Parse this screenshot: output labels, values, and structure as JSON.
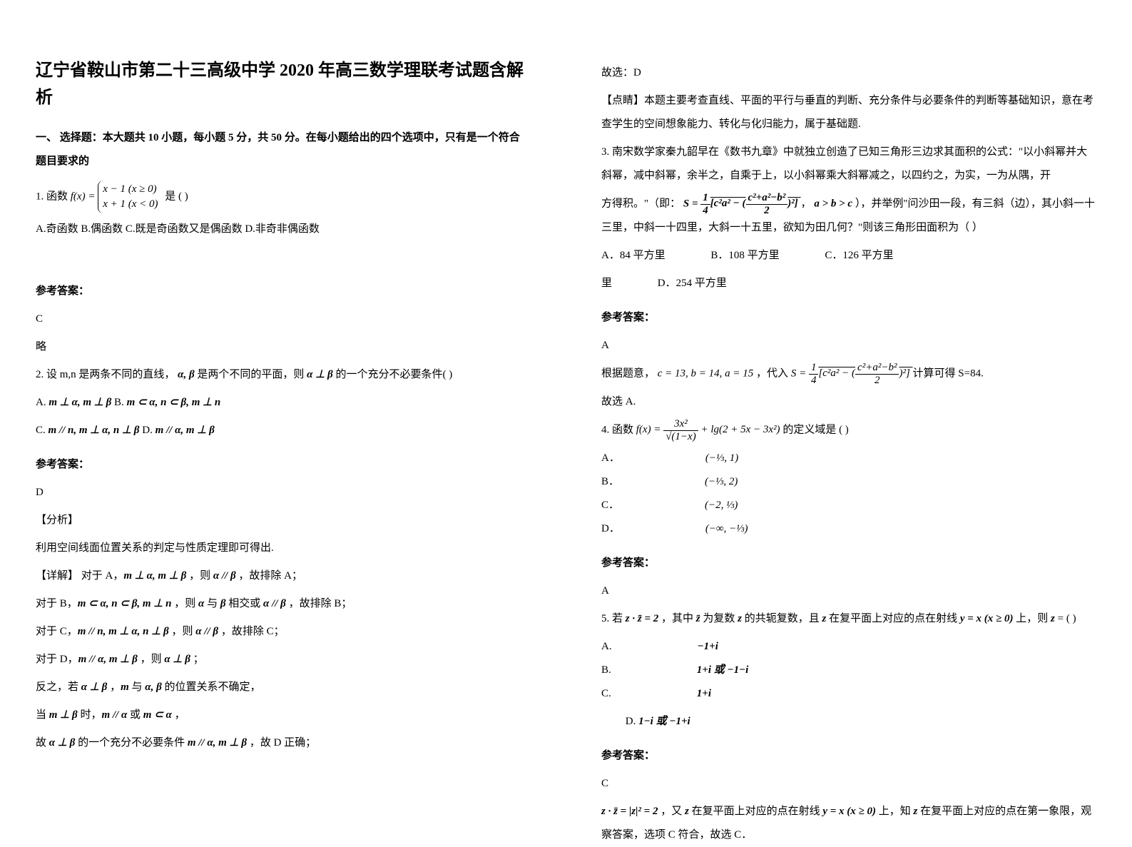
{
  "left": {
    "title": "辽宁省鞍山市第二十三高级中学 2020 年高三数学理联考试题含解析",
    "section1": "一、 选择题：本大题共 10 小题，每小题 5 分，共 50 分。在每小题给出的四个选项中，只有是一个符合题目要求的",
    "q1_prefix": "1. 函数",
    "q1_fx": "f(x) =",
    "q1_piece_top": "x − 1   (x ≥ 0)",
    "q1_piece_bot": "x + 1   (x < 0)",
    "q1_suffix": "是          (    )",
    "q1_opts": "A.奇函数  B.偶函数  C.既是奇函数又是偶函数  D.非奇非偶函数",
    "ans_label": "参考答案：",
    "q1_ans": "C",
    "q1_ans2": "略",
    "q2_stem": "2. 设 m,n 是两条不同的直线，",
    "q2_ab": "α, β",
    "q2_stem2": " 是两个不同的平面，则 ",
    "q2_aperp": "α ⊥ β",
    "q2_stem3": " 的一个充分不必要条件(    )",
    "q2_A_pre": "A. ",
    "q2_A": "m ⊥ α, m ⊥ β",
    "q2_B_pre": "      B. ",
    "q2_B": "m ⊂ α, n ⊂ β, m ⊥ n",
    "q2_C_pre": "C. ",
    "q2_C": "m // n, m ⊥ α, n ⊥ β",
    "q2_D_pre": "      D. ",
    "q2_D": "m // α, m ⊥ β",
    "q2_ans": "D",
    "q2_fx": "【分析】",
    "q2_fx_body": "利用空间线面位置关系的判定与性质定理即可得出.",
    "q2_detail_label": "【详解】",
    "q2_dA_1": "对于 A，",
    "q2_dA_m": "m ⊥ α, m ⊥ β",
    "q2_dA_2": "，则 ",
    "q2_dA_r": "α // β",
    "q2_dA_3": "，故排除 A；",
    "q2_dB_1": "对于 B，",
    "q2_dB_m": "m ⊂ α, n ⊂ β, m ⊥ n",
    "q2_dB_2": "，则 ",
    "q2_dB_a": "α",
    "q2_dB_3": " 与 ",
    "q2_dB_b": "β",
    "q2_dB_4": " 相交或 ",
    "q2_dB_r": "α // β",
    "q2_dB_5": "，故排除 B；",
    "q2_dC_1": "对于 C，",
    "q2_dC_m": "m // n, m ⊥ α, n ⊥ β",
    "q2_dC_2": "，则 ",
    "q2_dC_r": "α // β",
    "q2_dC_3": "，故排除 C；",
    "q2_dD_1": "对于 D，",
    "q2_dD_m": "m // α, m ⊥ β",
    "q2_dD_2": "，则 ",
    "q2_dD_r": "α ⊥ β",
    "q2_dD_3": "；",
    "q2_inv_1": "反之，若 ",
    "q2_inv_r": "α ⊥ β",
    "q2_inv_2": "，",
    "q2_inv_m": "m",
    "q2_inv_3": " 与 ",
    "q2_inv_ab": "α, β",
    "q2_inv_4": " 的位置关系不确定，",
    "q2_when_1": "当 ",
    "q2_when_m": "m ⊥ β",
    "q2_when_2": " 时，",
    "q2_when_r1": "m // α",
    "q2_when_3": " 或 ",
    "q2_when_r2": "m ⊂ α",
    "q2_when_4": " ，",
    "q2_so_1": "故 ",
    "q2_so_r": "α ⊥ β",
    "q2_so_2": " 的一个充分不必要条件 ",
    "q2_so_m": "m // α, m ⊥ β",
    "q2_so_3": "，故 D 正确；"
  },
  "right": {
    "q2_sel": "故选：D",
    "q2_dj": "【点睛】本题主要考查直线、平面的平行与垂直的判断、充分条件与必要条件的判断等基础知识，意在考查学生的空间想象能力、转化与化归能力，属于基础题.",
    "q3_stem1": "3. 南宋数学家秦九韶早在《数书九章》中就独立创造了已知三角形三边求其面积的公式：\"以小斜幂并大斜幂，减中斜幂，余半之，自乘于上，以小斜幂乘大斜幂减之，以四约之，为实，一为从隅，开",
    "q3_stem2_pre": "方得积。\"（即：",
    "q3_formula": "S = √[ ¼ [c²a² − ( (c²+a²−b²)/2 )² ] ]",
    "q3_stem2_mid": "，",
    "q3_abc": "a > b > c",
    "q3_stem2_post": "），并举例\"问沙田一段，有三斜（边），其小斜一十三里，中斜一十四里，大斜一十五里，欲知为田几何？\"则该三角形田面积为（      ）",
    "q3_A": "A．84 平方里",
    "q3_B": "B．108 平方里",
    "q3_C": "C．126 平方里",
    "q3_D": "D．254 平方里",
    "q3_ans": "A",
    "q3_sol_1": "根据题意，",
    "q3_sol_vals": "c = 13, b = 14, a = 15",
    "q3_sol_2": " ，代入 ",
    "q3_sol_S": "S = √[ ¼ [c²a² − ( (c²+a²−b²)/2 )² ] ]",
    "q3_sol_3": " 计算可得 S=84.",
    "q3_sel": "故选 A.",
    "q4_pre": "4. 函数 ",
    "q4_fx": "f(x) = 3x² / √(1−x) + lg(2 + 5x − 3x²)",
    "q4_post": " 的定义域是     (    )",
    "q4_A_pre": "A．",
    "q4_A": "(−⅓, 1)",
    "q4_B_pre": "B．",
    "q4_B": "(−⅓, 2)",
    "q4_C_pre": "C．",
    "q4_C": "(−2, ⅓)",
    "q4_D_pre": "D．",
    "q4_D": "(−∞, −⅓)",
    "q4_ans": "A",
    "q5_1": "5. 若 ",
    "q5_zz": "z · z̄ = 2",
    "q5_2": "，其中 ",
    "q5_zbar": "z̄",
    "q5_3": " 为复数 ",
    "q5_z": "z",
    "q5_4": " 的共轭复数，且 ",
    "q5_z2": "z",
    "q5_5": " 在复平面上对应的点在射线 ",
    "q5_ray": "y = x (x ≥ 0)",
    "q5_6": " 上，则 ",
    "q5_z3": "z",
    "q5_7": " = (    )",
    "q5_A_pre": "A. ",
    "q5_A": "−1+i",
    "q5_B_pre": "B. ",
    "q5_B": "1+i 或 −1−i",
    "q5_C_pre": "C. ",
    "q5_C": "1+i",
    "q5_D_pre": "D. ",
    "q5_D": "1−i 或 −1+i",
    "q5_ans": "C",
    "q5_sol_eq": "z · z̄ = |z|² = 2",
    "q5_sol_1": "，又 ",
    "q5_sol_z": "z",
    "q5_sol_2": " 在复平面上对应的点在射线 ",
    "q5_sol_ray": "y = x (x ≥ 0)",
    "q5_sol_3": " 上，知 ",
    "q5_sol_z2": "z",
    "q5_sol_4": " 在复平面上对应的点在第一象限，观察答案，选项 C 符合，故选 C．"
  }
}
